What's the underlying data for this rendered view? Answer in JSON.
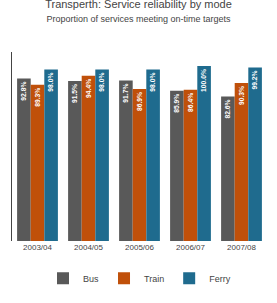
{
  "chart_data": {
    "type": "bar",
    "title": "Transperth: Service reliability by mode",
    "subtitle": "Proportion of services meeting on-time targets",
    "categories": [
      "2003/04",
      "2004/05",
      "2005/06",
      "2006/07",
      "2007/08"
    ],
    "series": [
      {
        "name": "Bus",
        "color": "#595959",
        "values": [
          92.8,
          91.5,
          91.7,
          85.9,
          82.6
        ],
        "value_labels": [
          "92.8%",
          "91.5%",
          "91.7%",
          "85.9%",
          "82.6%"
        ]
      },
      {
        "name": "Train",
        "color": "#C0500A",
        "values": [
          89.3,
          94.4,
          86.9,
          86.4,
          90.3
        ],
        "value_labels": [
          "89.3%",
          "94.4%",
          "86.9%",
          "86.4%",
          "90.3%"
        ]
      },
      {
        "name": "Ferry",
        "color": "#1F6B8E",
        "values": [
          98.0,
          98.0,
          98.0,
          100.0,
          99.2
        ],
        "value_labels": [
          "98.0%",
          "98.0%",
          "98.0%",
          "100.0%",
          "99.2%"
        ]
      }
    ],
    "ylim": [
      0,
      108
    ],
    "grid": false,
    "legend": "bottom",
    "data_labels": true,
    "tick_labels": "x"
  }
}
